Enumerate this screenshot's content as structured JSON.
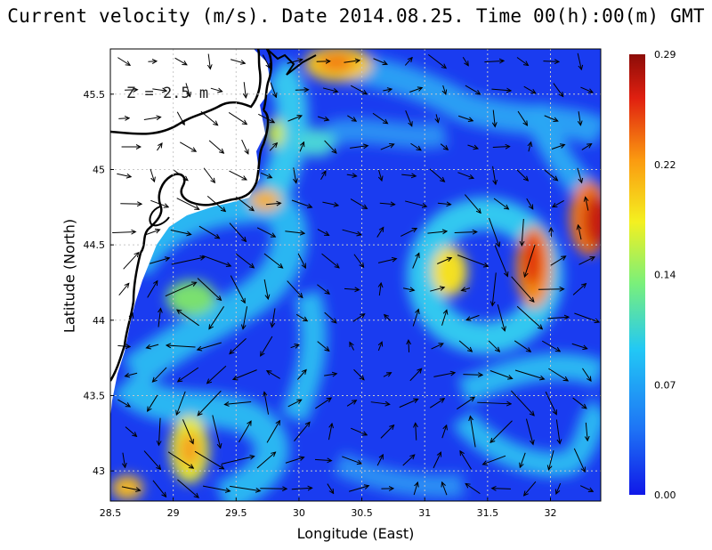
{
  "title": "Current velocity (m/s). Date 2014.08.25. Time 00(h):00(m) GMT",
  "depth_label": "Z = 2.5 m",
  "chart_data": {
    "type": "heatmap",
    "quantity": "current velocity magnitude with direction vectors",
    "xlabel": "Longitude (East)",
    "ylabel": "Latitude (North)",
    "xlim": [
      28.5,
      32.4
    ],
    "ylim": [
      42.8,
      45.8
    ],
    "x_ticks": [
      "28.5",
      "29",
      "29.5",
      "30",
      "30.5",
      "31",
      "31.5",
      "32"
    ],
    "y_ticks": [
      "43",
      "43.5",
      "44",
      "44.5",
      "45",
      "45.5"
    ],
    "grid": true,
    "colorbar": {
      "ticks": [
        "0.00",
        "0.07",
        "0.14",
        "0.22",
        "0.29"
      ],
      "min": 0.0,
      "max": 0.29,
      "colors": [
        "#1018e8",
        "#1e74f5",
        "#22c8f5",
        "#7af07a",
        "#f4f020",
        "#fb9a10",
        "#e02010",
        "#8c0c08"
      ]
    },
    "hotspots": [
      {
        "lon": 31.85,
        "lat": 44.38,
        "speed": 0.27
      },
      {
        "lon": 32.35,
        "lat": 44.62,
        "speed": 0.28
      },
      {
        "lon": 30.3,
        "lat": 45.7,
        "speed": 0.22
      },
      {
        "lon": 31.15,
        "lat": 44.3,
        "speed": 0.2
      },
      {
        "lon": 29.15,
        "lat": 43.1,
        "speed": 0.2
      },
      {
        "lon": 29.7,
        "lat": 44.8,
        "speed": 0.2
      },
      {
        "lon": 28.62,
        "lat": 42.85,
        "speed": 0.19
      }
    ]
  }
}
